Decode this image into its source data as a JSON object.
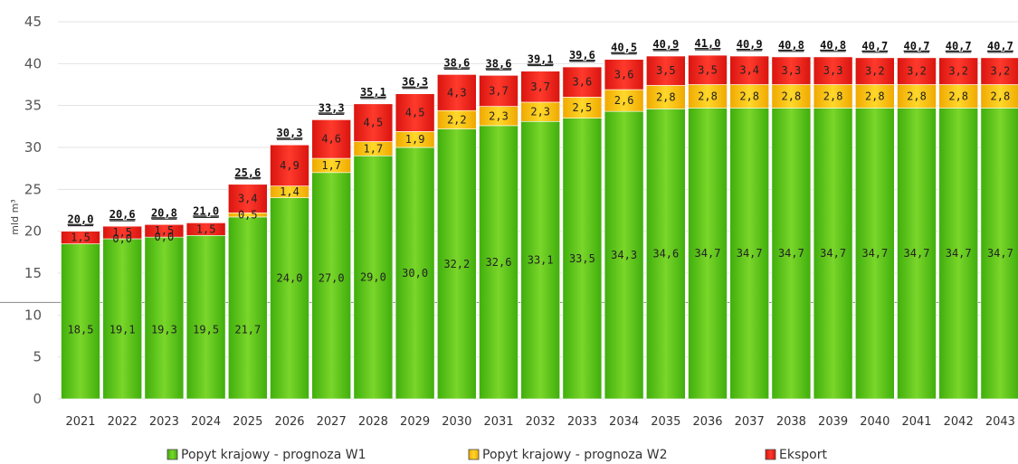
{
  "chart_data": {
    "type": "bar",
    "stacked": true,
    "ylabel": "mld m³",
    "ylim": [
      0,
      45
    ],
    "yticks": [
      0,
      5,
      10,
      15,
      20,
      25,
      30,
      35,
      40,
      45
    ],
    "categories": [
      "2021",
      "2022",
      "2023",
      "2024",
      "2025",
      "2026",
      "2027",
      "2028",
      "2029",
      "2030",
      "2031",
      "2032",
      "2033",
      "2034",
      "2035",
      "2036",
      "2037",
      "2038",
      "2039",
      "2040",
      "2041",
      "2042",
      "2043"
    ],
    "series": [
      {
        "name": "Popyt krajowy - prognoza W1",
        "color": "#5cc419",
        "values": [
          18.5,
          19.1,
          19.3,
          19.5,
          21.7,
          24.0,
          27.0,
          29.0,
          30.0,
          32.2,
          32.6,
          33.1,
          33.5,
          34.3,
          34.6,
          34.7,
          34.7,
          34.7,
          34.7,
          34.7,
          34.7,
          34.7,
          34.7
        ],
        "labels": [
          "18,5",
          "19,1",
          "19,3",
          "19,5",
          "21,7",
          "24,0",
          "27,0",
          "29,0",
          "30,0",
          "32,2",
          "32,6",
          "33,1",
          "33,5",
          "34,3",
          "34,6",
          "34,7",
          "34,7",
          "34,7",
          "34,7",
          "34,7",
          "34,7",
          "34,7",
          "34,7"
        ]
      },
      {
        "name": "Popyt krajowy - prognoza W2",
        "color": "#f5c000",
        "values": [
          0.0,
          0.0,
          0.0,
          0.0,
          0.5,
          1.4,
          1.7,
          1.7,
          1.9,
          2.2,
          2.3,
          2.3,
          2.5,
          2.6,
          2.8,
          2.8,
          2.8,
          2.8,
          2.8,
          2.8,
          2.8,
          2.8,
          2.8
        ],
        "labels": [
          "",
          "0,0",
          "0,0",
          "",
          "0,5",
          "1,4",
          "1,7",
          "1,7",
          "1,9",
          "2,2",
          "2,3",
          "2,3",
          "2,5",
          "2,6",
          "2,8",
          "2,8",
          "2,8",
          "2,8",
          "2,8",
          "2,8",
          "2,8",
          "2,8",
          "2,8"
        ]
      },
      {
        "name": "Eksport",
        "color": "#e8201a",
        "values": [
          1.5,
          1.5,
          1.5,
          1.5,
          3.4,
          4.9,
          4.6,
          4.5,
          4.5,
          4.3,
          3.7,
          3.7,
          3.6,
          3.6,
          3.5,
          3.5,
          3.4,
          3.3,
          3.3,
          3.2,
          3.2,
          3.2,
          3.2
        ],
        "labels": [
          "1,5",
          "1,5",
          "1,5",
          "1,5",
          "3,4",
          "4,9",
          "4,6",
          "4,5",
          "4,5",
          "4,3",
          "3,7",
          "3,7",
          "3,6",
          "3,6",
          "3,5",
          "3,5",
          "3,4",
          "3,3",
          "3,3",
          "3,2",
          "3,2",
          "3,2",
          "3,2"
        ]
      }
    ],
    "totals": [
      "20,0",
      "20,6",
      "20,8",
      "21,0",
      "25,6",
      "30,3",
      "33,3",
      "35,1",
      "36,3",
      "38,6",
      "38,6",
      "39,1",
      "39,6",
      "40,5",
      "40,9",
      "41,0",
      "40,9",
      "40,8",
      "40,8",
      "40,7",
      "40,7",
      "40,7",
      "40,7"
    ],
    "grid": true,
    "legend_position": "bottom"
  }
}
